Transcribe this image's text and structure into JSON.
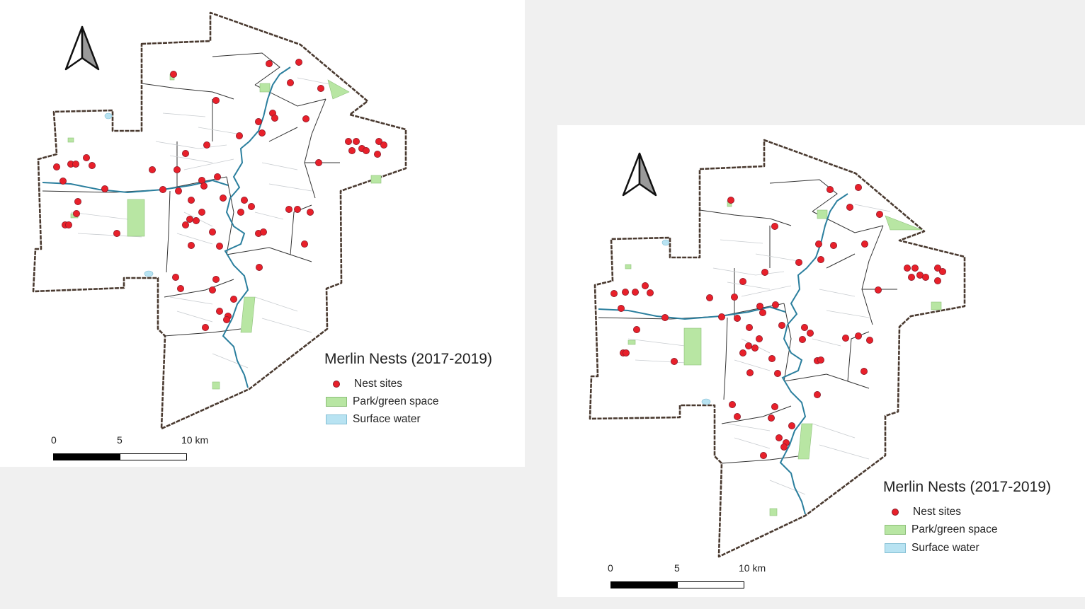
{
  "maps": [
    {
      "title": "Merlin Nests (2017-2019)",
      "legend": [
        {
          "symbol": "nest-dot",
          "label": "Nest sites"
        },
        {
          "symbol": "park-patch",
          "label": "Park/green space"
        },
        {
          "symbol": "water-patch",
          "label": "Surface water"
        }
      ],
      "scale": {
        "ticks": [
          "0",
          "5",
          "10 km"
        ]
      }
    },
    {
      "title": "Merlin Nests (2017-2019)",
      "legend": [
        {
          "symbol": "nest-dot",
          "label": "Nest sites"
        },
        {
          "symbol": "park-patch",
          "label": "Park/green space"
        },
        {
          "symbol": "water-patch",
          "label": "Surface water"
        }
      ],
      "scale": {
        "ticks": [
          "0",
          "5",
          "10 km"
        ]
      }
    }
  ],
  "colors": {
    "nest": "#e8202a",
    "park": "#b8e6a3",
    "water": "#b8e3f2",
    "boundary": "#4a3a30"
  }
}
